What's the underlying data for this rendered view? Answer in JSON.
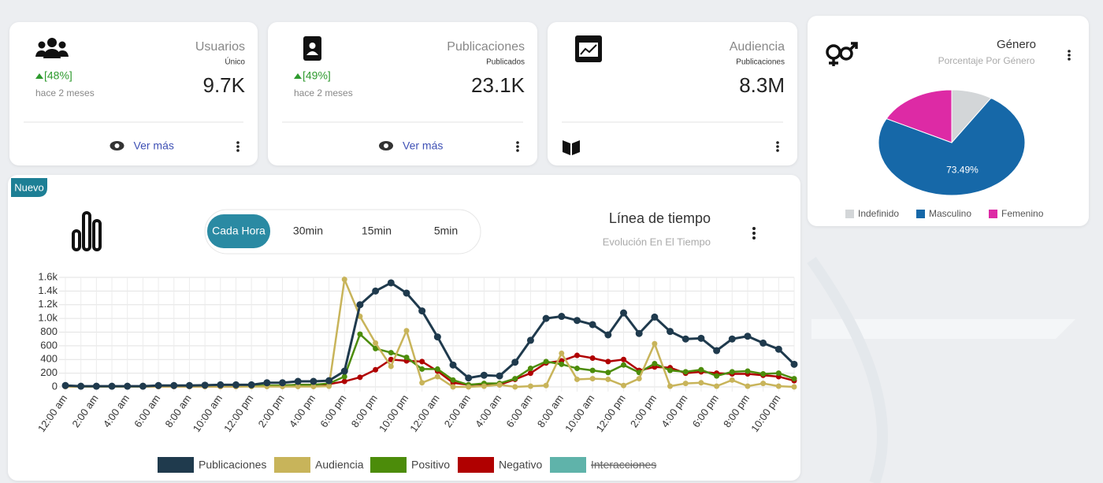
{
  "cards": [
    {
      "title": "Usuarios",
      "subtitle": "Único",
      "change": "[48%]",
      "period": "hace 2 meses",
      "value": "9.7K",
      "link": "Ver más"
    },
    {
      "title": "Publicaciones",
      "subtitle": "Publicados",
      "change": "[49%]",
      "period": "hace 2 meses",
      "value": "23.1K",
      "link": "Ver más"
    },
    {
      "title": "Audiencia",
      "subtitle": "Publicaciones",
      "value": "8.3M"
    }
  ],
  "timeline": {
    "badge": "Nuevo",
    "tabs": [
      "Cada Hora",
      "30min",
      "15min",
      "5min"
    ],
    "active_tab": 0
  },
  "chart_data": [
    {
      "type": "pie",
      "title": "Género",
      "subtitle": "Porcentaje Por Género",
      "categories": [
        "Indefinido",
        "Masculino",
        "Femenino"
      ],
      "values": [
        9.01,
        73.49,
        17.5
      ],
      "colors": [
        "#d3d6d8",
        "#1668a8",
        "#dd2aa5"
      ],
      "data_label": {
        "index": 1,
        "text": "73.49%"
      },
      "legend": "bottom"
    },
    {
      "type": "line",
      "title": "Línea de tiempo",
      "subtitle": "Evolución En El Tiempo",
      "categories": [
        "12:00 am",
        null,
        "2:00 am",
        null,
        "4:00 am",
        null,
        "6:00 am",
        null,
        "8:00 am",
        null,
        "10:00 am",
        null,
        "12:00 pm",
        null,
        "2:00 pm",
        null,
        "4:00 pm",
        null,
        "6:00 pm",
        null,
        "8:00 pm",
        null,
        "10:00 pm",
        null,
        "12:00 am",
        null,
        "2:00 am",
        null,
        "4:00 am",
        null,
        "6:00 am",
        null,
        "8:00 am",
        null,
        "10:00 am",
        null,
        "12:00 pm",
        null,
        "2:00 pm",
        null,
        "4:00 pm",
        null,
        "6:00 pm",
        null,
        "8:00 pm",
        null,
        "10:00 pm",
        null
      ],
      "ylim": [
        0,
        1600
      ],
      "yticks": [
        0,
        200,
        400,
        600,
        800,
        {
          "value": 1000,
          "label": "1.0k"
        },
        {
          "value": 1200,
          "label": "1.2k"
        },
        {
          "value": 1400,
          "label": "1.4k"
        },
        {
          "value": 1600,
          "label": "1.6k"
        }
      ],
      "grid": true,
      "legend": "bottom",
      "series": [
        {
          "name": "Publicaciones",
          "color": "#1f3a4d",
          "values": [
            20,
            10,
            10,
            10,
            10,
            10,
            20,
            20,
            20,
            25,
            30,
            30,
            30,
            60,
            60,
            80,
            80,
            90,
            230,
            1200,
            1400,
            1520,
            1370,
            1110,
            730,
            320,
            130,
            170,
            160,
            360,
            680,
            1000,
            1030,
            970,
            910,
            760,
            1080,
            780,
            1020,
            810,
            700,
            710,
            530,
            700,
            740,
            640,
            550,
            330
          ]
        },
        {
          "name": "Audiencia",
          "color": "#c8b45a",
          "values": [
            5,
            5,
            5,
            5,
            5,
            5,
            5,
            5,
            5,
            5,
            5,
            5,
            5,
            5,
            5,
            5,
            5,
            10,
            1570,
            1030,
            640,
            300,
            820,
            60,
            150,
            0,
            0,
            10,
            30,
            0,
            10,
            20,
            490,
            110,
            120,
            110,
            20,
            120,
            630,
            10,
            50,
            60,
            10,
            100,
            10,
            50,
            10,
            0
          ]
        },
        {
          "name": "Positivo",
          "color": "#4c8c0a",
          "values": [
            10,
            5,
            5,
            5,
            5,
            5,
            10,
            10,
            10,
            10,
            10,
            10,
            15,
            20,
            20,
            30,
            30,
            50,
            150,
            770,
            560,
            500,
            430,
            260,
            260,
            100,
            30,
            50,
            50,
            120,
            270,
            370,
            330,
            270,
            240,
            210,
            320,
            210,
            340,
            240,
            220,
            250,
            160,
            220,
            230,
            190,
            200,
            120
          ]
        },
        {
          "name": "Negativo",
          "color": "#b00000",
          "values": [
            5,
            5,
            5,
            5,
            5,
            5,
            5,
            5,
            5,
            5,
            5,
            5,
            10,
            15,
            20,
            30,
            30,
            40,
            80,
            140,
            250,
            400,
            380,
            370,
            230,
            60,
            30,
            40,
            30,
            110,
            200,
            350,
            380,
            460,
            420,
            370,
            400,
            240,
            290,
            280,
            200,
            220,
            200,
            190,
            190,
            170,
            150,
            90
          ]
        },
        {
          "name": "Interacciones",
          "color": "#5fb3aa",
          "hidden": true
        }
      ]
    }
  ]
}
